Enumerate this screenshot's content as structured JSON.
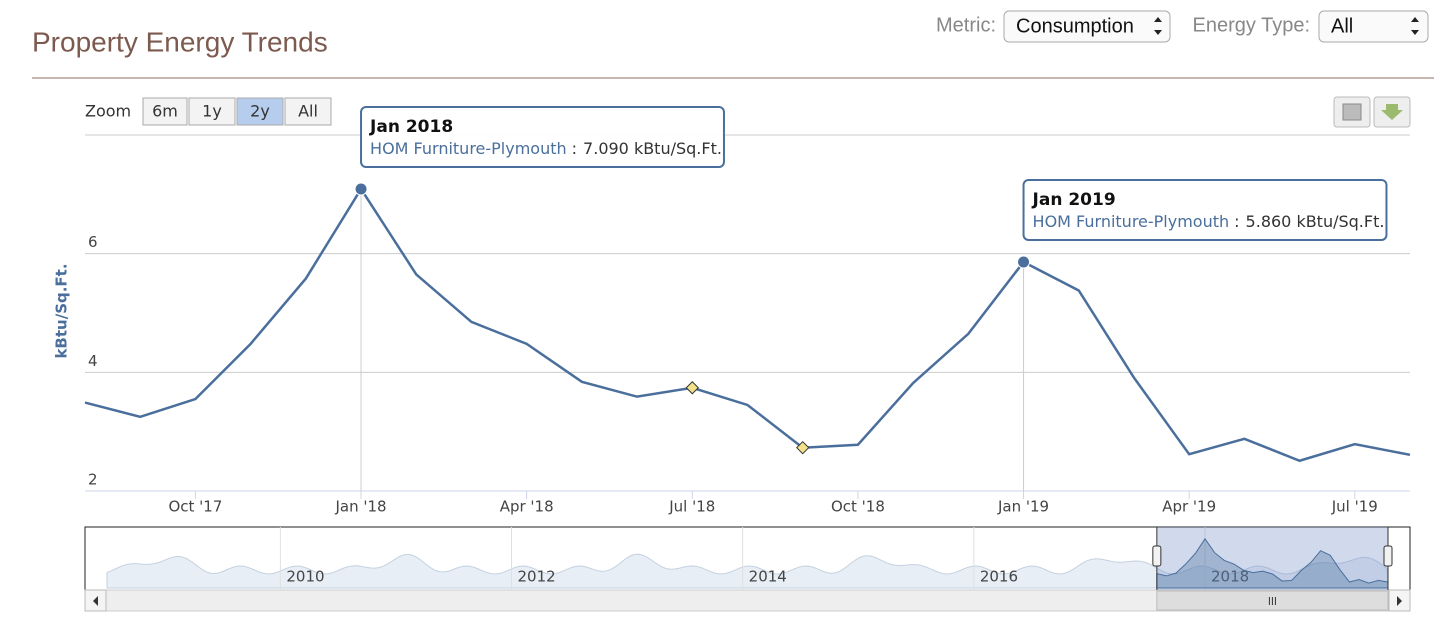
{
  "header": {
    "title": "Property Energy Trends",
    "metric_label": "Metric:",
    "metric_value": "Consumption",
    "energy_type_label": "Energy Type:",
    "energy_type_value": "All"
  },
  "zoom": {
    "label": "Zoom",
    "buttons": [
      "6m",
      "1y",
      "2y",
      "All"
    ],
    "selected": 2
  },
  "chart_data": {
    "type": "line",
    "y_axis_title": "kBtu/Sq.Ft.",
    "x": [
      "2017-08",
      "2017-09",
      "2017-10",
      "2017-11",
      "2017-12",
      "2018-01",
      "2018-02",
      "2018-03",
      "2018-04",
      "2018-05",
      "2018-06",
      "2018-07",
      "2018-08",
      "2018-09",
      "2018-10",
      "2018-11",
      "2018-12",
      "2019-01",
      "2019-02",
      "2019-03",
      "2019-04",
      "2019-05",
      "2019-06",
      "2019-07",
      "2019-08"
    ],
    "series": [
      {
        "name": "HOM Furniture-Plymouth",
        "color": "#4a6f9c",
        "values": [
          3.49,
          3.25,
          3.55,
          4.48,
          5.58,
          7.09,
          5.65,
          4.85,
          4.48,
          3.84,
          3.59,
          3.74,
          3.45,
          2.73,
          2.78,
          3.82,
          4.65,
          5.86,
          5.38,
          3.91,
          2.62,
          2.88,
          2.51,
          2.79,
          2.61
        ]
      }
    ],
    "flagged_points": [
      11,
      13
    ],
    "flag_color": "#f3e08a",
    "ylim": [
      2,
      8
    ],
    "yticks": [
      2,
      4,
      6
    ],
    "grid": true,
    "xticks": [
      {
        "value": "2017-10",
        "label": "Oct '17"
      },
      {
        "value": "2018-01",
        "label": "Jan '18"
      },
      {
        "value": "2018-04",
        "label": "Apr '18"
      },
      {
        "value": "2018-07",
        "label": "Jul '18"
      },
      {
        "value": "2018-10",
        "label": "Oct '18"
      },
      {
        "value": "2019-01",
        "label": "Jan '19"
      },
      {
        "value": "2019-04",
        "label": "Apr '19"
      },
      {
        "value": "2019-07",
        "label": "Jul '19"
      }
    ],
    "tooltip_separator": ":",
    "tooltips": [
      {
        "point": 5,
        "title": "Jan 2018",
        "value_label": "7.090 kBtu/Sq.Ft."
      },
      {
        "point": 17,
        "title": "Jan 2019",
        "value_label": "5.860 kBtu/Sq.Ft."
      }
    ],
    "navigator": {
      "xlim": [
        "2008-07",
        "2019-08"
      ],
      "xticks": [
        {
          "value": "2010-01",
          "label": "2010"
        },
        {
          "value": "2012-01",
          "label": "2012"
        },
        {
          "value": "2014-01",
          "label": "2014"
        },
        {
          "value": "2016-01",
          "label": "2016"
        },
        {
          "value": "2018-01",
          "label": "2018"
        }
      ]
    }
  }
}
